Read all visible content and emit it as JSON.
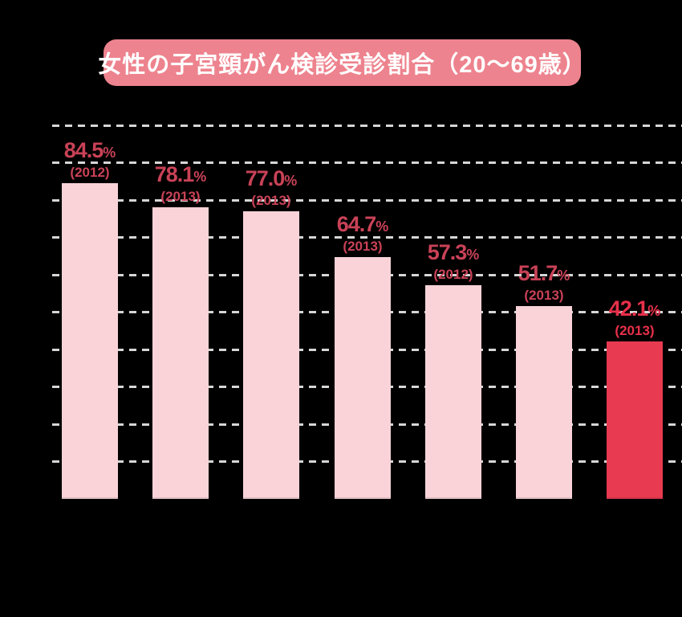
{
  "chart_data": {
    "type": "bar",
    "title": "女性の子宮頸がん検診受診割合（20〜69歳）",
    "xlabel": "",
    "ylabel": "",
    "unit": "%",
    "ylim": [
      0,
      100
    ],
    "gridline_step_percent": 10,
    "grid_style": "dashed",
    "legend_position": "none",
    "bars": [
      {
        "value": 84.5,
        "label": "84.5",
        "year": "(2012)",
        "highlight": false
      },
      {
        "value": 78.1,
        "label": "78.1",
        "year": "(2013)",
        "highlight": false
      },
      {
        "value": 77.0,
        "label": "77.0",
        "year": "(2013)",
        "highlight": false
      },
      {
        "value": 64.7,
        "label": "64.7",
        "year": "(2013)",
        "highlight": false
      },
      {
        "value": 57.3,
        "label": "57.3",
        "year": "(2012)",
        "highlight": false
      },
      {
        "value": 51.7,
        "label": "51.7",
        "year": "(2013)",
        "highlight": false
      },
      {
        "value": 42.1,
        "label": "42.1",
        "year": "(2013)",
        "highlight": true
      }
    ]
  },
  "colors": {
    "background": "#000000",
    "title_bg": "#ED838E",
    "title_text": "#FFFFFF",
    "bar_default": "#F9D3D8",
    "bar_highlight": "#E83A50",
    "label_default": "#C94257",
    "label_highlight": "#E8304A",
    "gridline": "#D6D6D6"
  }
}
